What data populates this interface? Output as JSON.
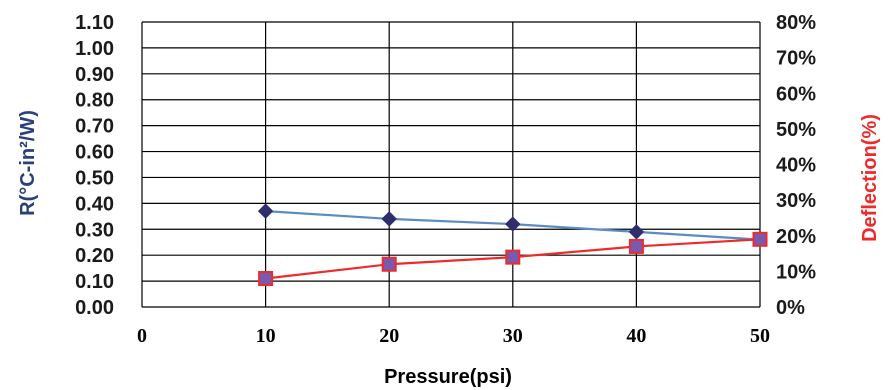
{
  "chart_data": {
    "type": "line",
    "xlabel": "Pressure(psi)",
    "ylabel_left": "R(°C-in²/W)",
    "ylabel_right": "Deflection(%)",
    "x_ticks": [
      "0",
      "10",
      "20",
      "30",
      "40",
      "50"
    ],
    "y_left_ticks": [
      "0.00",
      "0.10",
      "0.20",
      "0.30",
      "0.40",
      "0.50",
      "0.60",
      "0.70",
      "0.80",
      "0.90",
      "1.00",
      "1.10"
    ],
    "y_right_ticks": [
      "0%",
      "10%",
      "20%",
      "30%",
      "40%",
      "50%",
      "60%",
      "70%",
      "80%"
    ],
    "xlim": [
      0,
      50
    ],
    "ylim_left": [
      0,
      1.1
    ],
    "ylim_right": [
      0,
      80
    ],
    "grid": true,
    "series": [
      {
        "axis": "left",
        "color": "#5b8bc4",
        "marker_color": "#2f2d6e",
        "marker": "diamond",
        "x": [
          10,
          20,
          30,
          40,
          50
        ],
        "y": [
          0.37,
          0.34,
          0.32,
          0.29,
          0.26
        ]
      },
      {
        "axis": "right",
        "color": "#ee2b2b",
        "marker_color": "#7a5ab0",
        "marker": "square",
        "x": [
          10,
          20,
          30,
          40,
          50
        ],
        "y": [
          8,
          12,
          14,
          17,
          19
        ]
      }
    ]
  }
}
